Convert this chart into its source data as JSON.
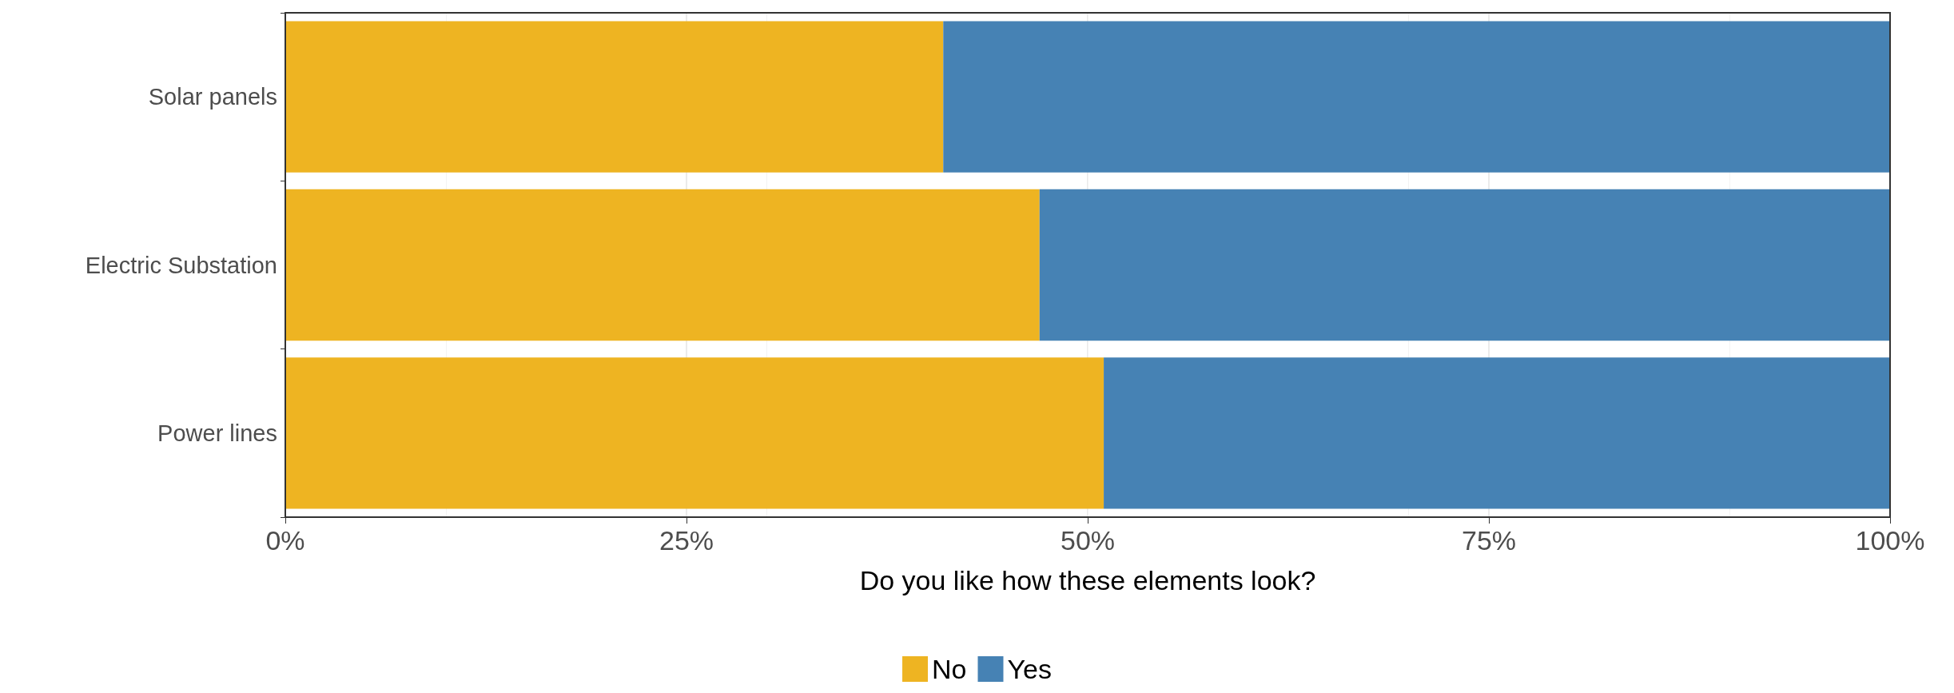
{
  "chart_data": {
    "type": "bar",
    "orientation": "horizontal",
    "stacked": true,
    "xlabel": "Do you like how these elements look?",
    "categories": [
      "Solar panels",
      "Electric Substation",
      "Power lines"
    ],
    "series": [
      {
        "name": "No",
        "color": "#eeb422",
        "values": [
          41,
          47,
          51
        ]
      },
      {
        "name": "Yes",
        "color": "#4682b4",
        "values": [
          59,
          53,
          49
        ]
      }
    ],
    "xlim": [
      0,
      100
    ],
    "xticks": [
      {
        "value": 0,
        "label": "0%"
      },
      {
        "value": 25,
        "label": "25%"
      },
      {
        "value": 50,
        "label": "50%"
      },
      {
        "value": 75,
        "label": "75%"
      },
      {
        "value": 100,
        "label": "100%"
      }
    ],
    "grid": "x",
    "legend": "bottom"
  }
}
